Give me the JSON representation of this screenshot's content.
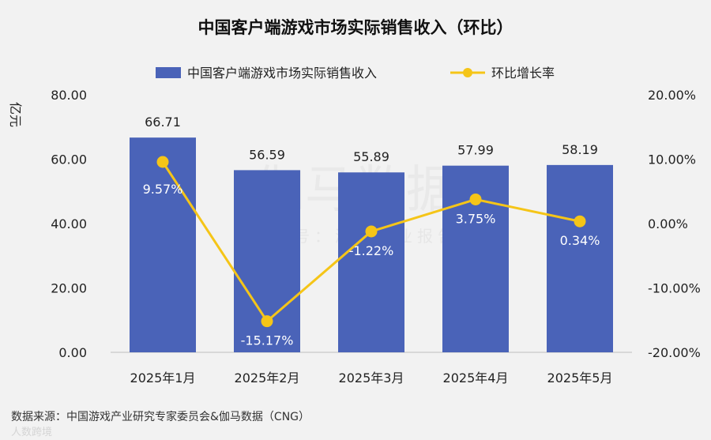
{
  "chart_data": {
    "type": "bar",
    "title": "中国客户端游戏市场实际销售收入（环比）",
    "categories": [
      "2025年1月",
      "2025年2月",
      "2025年3月",
      "2025年4月",
      "2025年5月"
    ],
    "series": [
      {
        "name": "中国客户端游戏市场实际销售收入",
        "kind": "bar",
        "axis": "left",
        "values": [
          66.71,
          56.59,
          55.89,
          57.99,
          58.19
        ],
        "labels": [
          "66.71",
          "56.59",
          "55.89",
          "57.99",
          "58.19"
        ]
      },
      {
        "name": "环比增长率",
        "kind": "line",
        "axis": "right",
        "values": [
          9.57,
          -15.17,
          -1.22,
          3.75,
          0.34
        ],
        "labels": [
          "9.57%",
          "-15.17%",
          "-1.22%",
          "3.75%",
          "0.34%"
        ]
      }
    ],
    "ylabel": "亿元",
    "ylim": [
      0,
      80
    ],
    "yticks": [
      "80.00",
      "60.00",
      "40.00",
      "20.00",
      "0.00"
    ],
    "y2lim": [
      -20,
      20
    ],
    "y2ticks": [
      "20.00%",
      "10.00%",
      "0.00%",
      "-10.00%",
      "-20.00%"
    ],
    "legend_position": "top-center",
    "grid": false
  },
  "colors": {
    "bar": "#4a63b8",
    "line": "#f5c518",
    "background": "#f2f2f2"
  },
  "source_text": "数据来源：中国游戏产业研究专家委员会&伽马数据（CNG）",
  "watermark": {
    "main": "伽马数据",
    "sub": "微信号：游戏产业报告",
    "corner": "人数跨境"
  }
}
